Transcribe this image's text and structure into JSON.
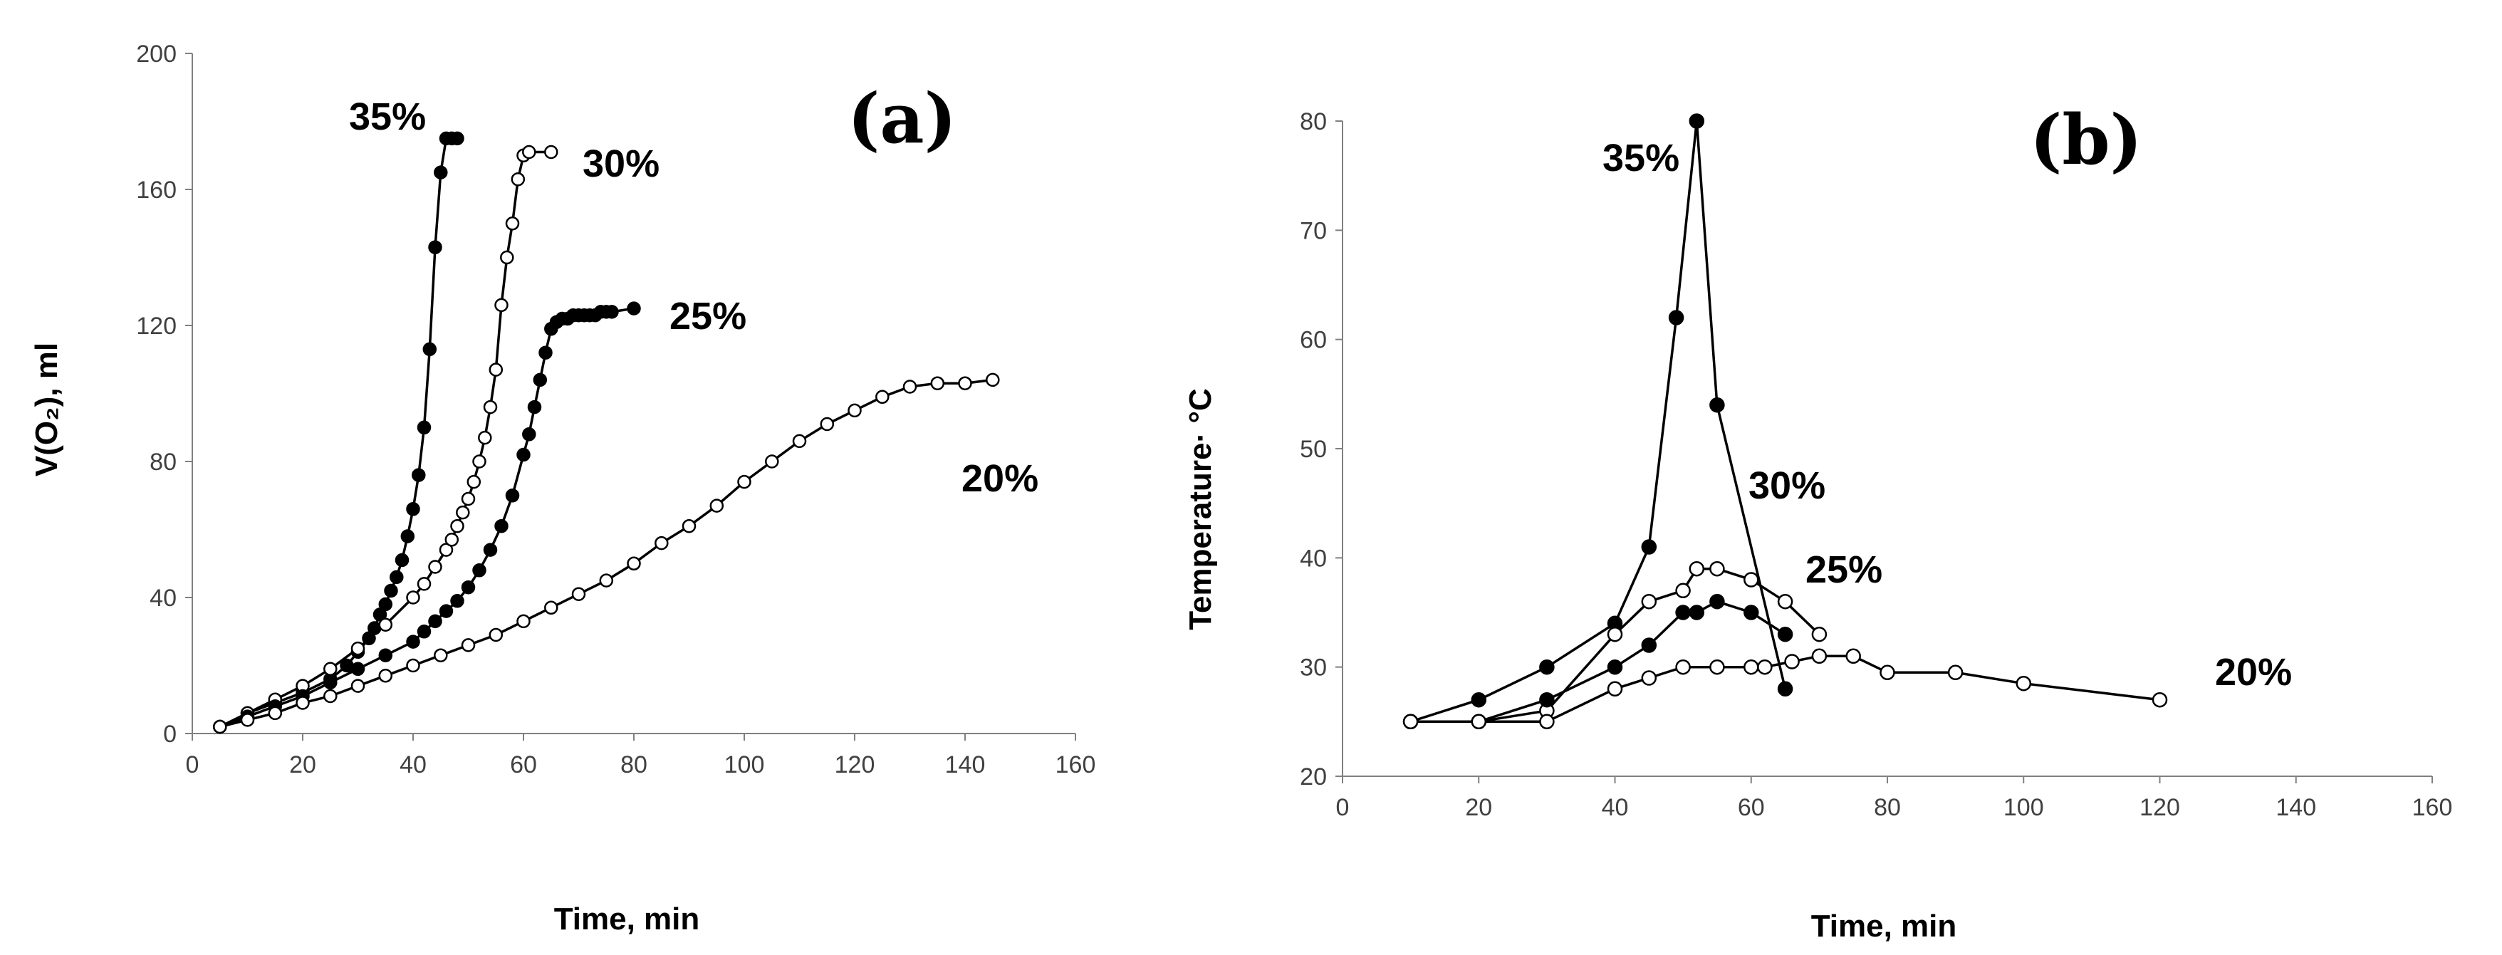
{
  "chart_data": [
    {
      "type": "line",
      "panel_label": "(a)",
      "xlabel": "Time, min",
      "ylabel": "V(O₂), ml",
      "xlim": [
        0,
        160
      ],
      "ylim": [
        0,
        200
      ],
      "xticks": [
        0,
        20,
        40,
        60,
        80,
        100,
        120,
        140,
        160
      ],
      "yticks": [
        0,
        40,
        80,
        120,
        160,
        200
      ],
      "grid": false,
      "series": [
        {
          "name": "35%",
          "marker": "filled",
          "x": [
            5,
            10,
            15,
            20,
            25,
            28,
            30,
            32,
            33,
            34,
            35,
            36,
            37,
            38,
            39,
            40,
            41,
            42,
            43,
            44,
            45,
            46,
            47,
            48
          ],
          "y": [
            2,
            6,
            9,
            12,
            16,
            20,
            24,
            28,
            31,
            35,
            38,
            42,
            46,
            51,
            58,
            66,
            76,
            90,
            113,
            143,
            165,
            175,
            175,
            175
          ]
        },
        {
          "name": "30%",
          "marker": "open",
          "x": [
            5,
            10,
            15,
            20,
            25,
            30,
            35,
            40,
            42,
            44,
            46,
            47,
            48,
            49,
            50,
            51,
            52,
            53,
            54,
            55,
            56,
            57,
            58,
            59,
            60,
            61,
            65
          ],
          "y": [
            2,
            6,
            10,
            14,
            19,
            25,
            32,
            40,
            44,
            49,
            54,
            57,
            61,
            65,
            69,
            74,
            80,
            87,
            96,
            107,
            126,
            140,
            150,
            163,
            170,
            171,
            171
          ]
        },
        {
          "name": "25%",
          "marker": "filled",
          "x": [
            5,
            10,
            15,
            20,
            25,
            30,
            35,
            40,
            42,
            44,
            46,
            48,
            50,
            52,
            54,
            56,
            58,
            60,
            61,
            62,
            63,
            64,
            65,
            66,
            67,
            68,
            69,
            70,
            71,
            72,
            73,
            74,
            75,
            76,
            80
          ],
          "y": [
            2,
            5,
            8,
            11,
            15,
            19,
            23,
            27,
            30,
            33,
            36,
            39,
            43,
            48,
            54,
            61,
            70,
            82,
            88,
            96,
            104,
            112,
            119,
            121,
            122,
            122,
            123,
            123,
            123,
            123,
            123,
            124,
            124,
            124,
            125
          ]
        },
        {
          "name": "20%",
          "marker": "open",
          "x": [
            5,
            10,
            15,
            20,
            25,
            30,
            35,
            40,
            45,
            50,
            55,
            60,
            65,
            70,
            75,
            80,
            85,
            90,
            95,
            100,
            105,
            110,
            115,
            120,
            125,
            130,
            135,
            140,
            145
          ],
          "y": [
            2,
            4,
            6,
            9,
            11,
            14,
            17,
            20,
            23,
            26,
            29,
            33,
            37,
            41,
            45,
            50,
            56,
            61,
            67,
            74,
            80,
            86,
            91,
            95,
            99,
            102,
            103,
            103,
            104
          ]
        }
      ],
      "annotations": [
        "35%",
        "30%",
        "25%",
        "20%"
      ]
    },
    {
      "type": "line",
      "panel_label": "(b)",
      "xlabel": "Time, min",
      "ylabel": "Temperature· °C",
      "xlim": [
        0,
        160
      ],
      "ylim": [
        20,
        80
      ],
      "xticks": [
        0,
        20,
        40,
        60,
        80,
        100,
        120,
        140,
        160
      ],
      "yticks": [
        20,
        30,
        40,
        50,
        60,
        70,
        80
      ],
      "grid": false,
      "series": [
        {
          "name": "35%",
          "marker": "filled",
          "x": [
            10,
            20,
            30,
            40,
            45,
            49,
            52,
            55,
            65
          ],
          "y": [
            25,
            27,
            30,
            34,
            41,
            62,
            80,
            54,
            28
          ]
        },
        {
          "name": "30%",
          "marker": "open",
          "x": [
            10,
            20,
            30,
            40,
            45,
            50,
            52,
            55,
            60,
            65,
            70
          ],
          "y": [
            25,
            25,
            26,
            33,
            36,
            37,
            39,
            39,
            38,
            36,
            33
          ]
        },
        {
          "name": "25%",
          "marker": "filled",
          "x": [
            10,
            20,
            30,
            40,
            45,
            50,
            52,
            55,
            60,
            65
          ],
          "y": [
            25,
            25,
            27,
            30,
            32,
            35,
            35,
            36,
            35,
            33
          ]
        },
        {
          "name": "20%",
          "marker": "open",
          "x": [
            10,
            20,
            30,
            40,
            45,
            50,
            55,
            60,
            62,
            66,
            70,
            75,
            80,
            90,
            100,
            120
          ],
          "y": [
            25,
            25,
            25,
            28,
            29,
            30,
            30,
            30,
            30,
            30.5,
            31,
            31,
            29.5,
            29.5,
            28.5,
            27
          ]
        }
      ],
      "annotations": [
        "35%",
        "30%",
        "25%",
        "20%"
      ]
    }
  ]
}
